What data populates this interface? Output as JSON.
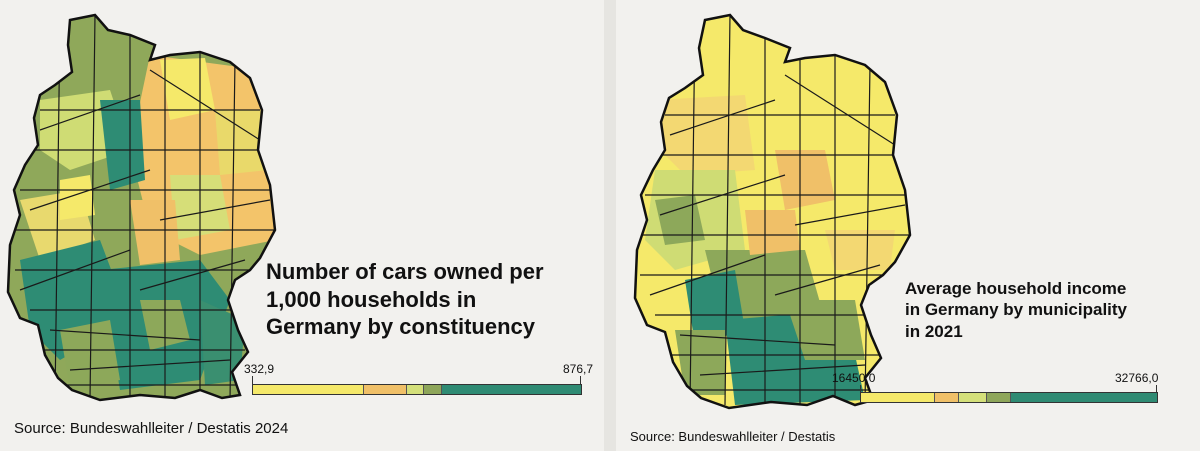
{
  "left_panel": {
    "title_lines": [
      "Number of cars owned per",
      "1,000 households in",
      "Germany by constituency"
    ],
    "scale_min": "332,9",
    "scale_max": "876,7",
    "legend_colors": [
      "#f5e96a",
      "#f0c068",
      "#d4e07a",
      "#8ea65a",
      "#2f8b73"
    ],
    "source": "Source: Bundeswahlleiter / Destatis 2024"
  },
  "right_panel": {
    "title_lines": [
      "Average household income",
      "in Germany by municipality",
      "in 2021"
    ],
    "scale_min": "16450,0",
    "scale_max": "32766,0",
    "legend_colors": [
      "#f5e96a",
      "#f0c068",
      "#d4e07a",
      "#8ea65a",
      "#2f8b73"
    ],
    "source": "Source: Bundeswahlleiter / Destatis"
  },
  "palette": {
    "yellow": "#f5e96a",
    "orange": "#f3c46a",
    "light_green": "#cfdc74",
    "olive": "#8da85a",
    "dark_green": "#2e8c74",
    "border": "#1a1a1a"
  }
}
